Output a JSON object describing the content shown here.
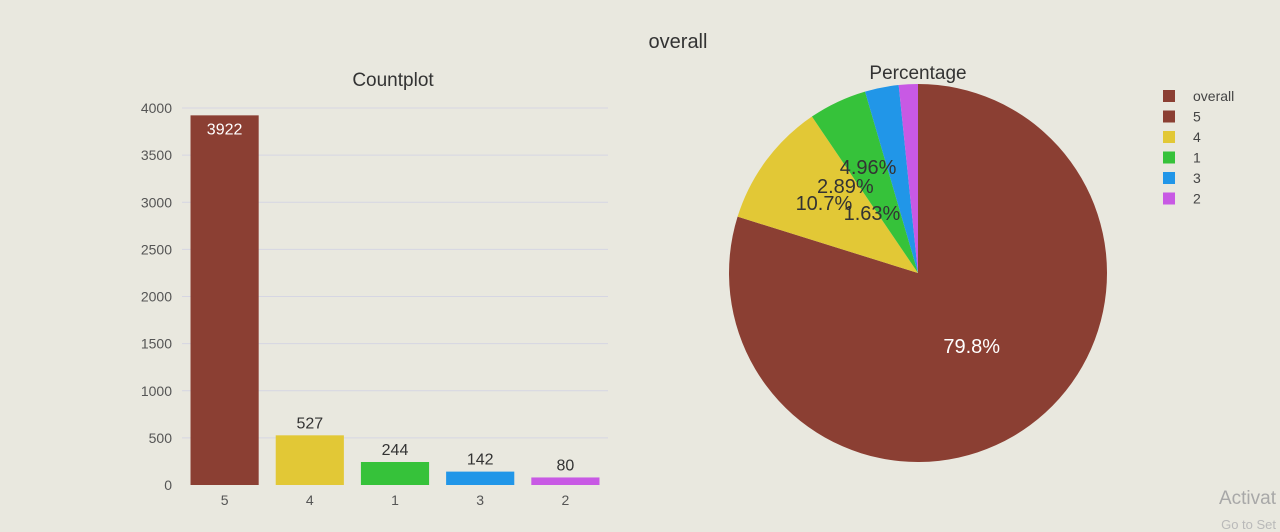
{
  "figure_title": "overall",
  "watermark": {
    "line1": "Activat",
    "line2": "Go to Set"
  },
  "colors": {
    "5": "#8b3f33",
    "4": "#e2c836",
    "1": "#36c23a",
    "3": "#2196e8",
    "2": "#c859e4"
  },
  "chart_data": [
    {
      "type": "bar",
      "title": "Countplot",
      "categories": [
        "5",
        "4",
        "1",
        "3",
        "2"
      ],
      "values": [
        3922,
        527,
        244,
        142,
        80
      ],
      "yticks": [
        0,
        500,
        1000,
        1500,
        2000,
        2500,
        3000,
        3500,
        4000
      ],
      "ylim": [
        0,
        4000
      ],
      "grid": true
    },
    {
      "type": "pie",
      "title": "Percentage",
      "labels": [
        "5",
        "4",
        "1",
        "3",
        "2"
      ],
      "values": [
        79.8,
        10.7,
        4.96,
        2.89,
        1.63
      ],
      "display_labels": [
        "79.8%",
        "10.7%",
        "4.96%",
        "2.89%",
        "1.63%"
      ],
      "legend": {
        "title": "overall",
        "placement": "right",
        "entries": [
          "5",
          "4",
          "1",
          "3",
          "2"
        ]
      }
    }
  ]
}
